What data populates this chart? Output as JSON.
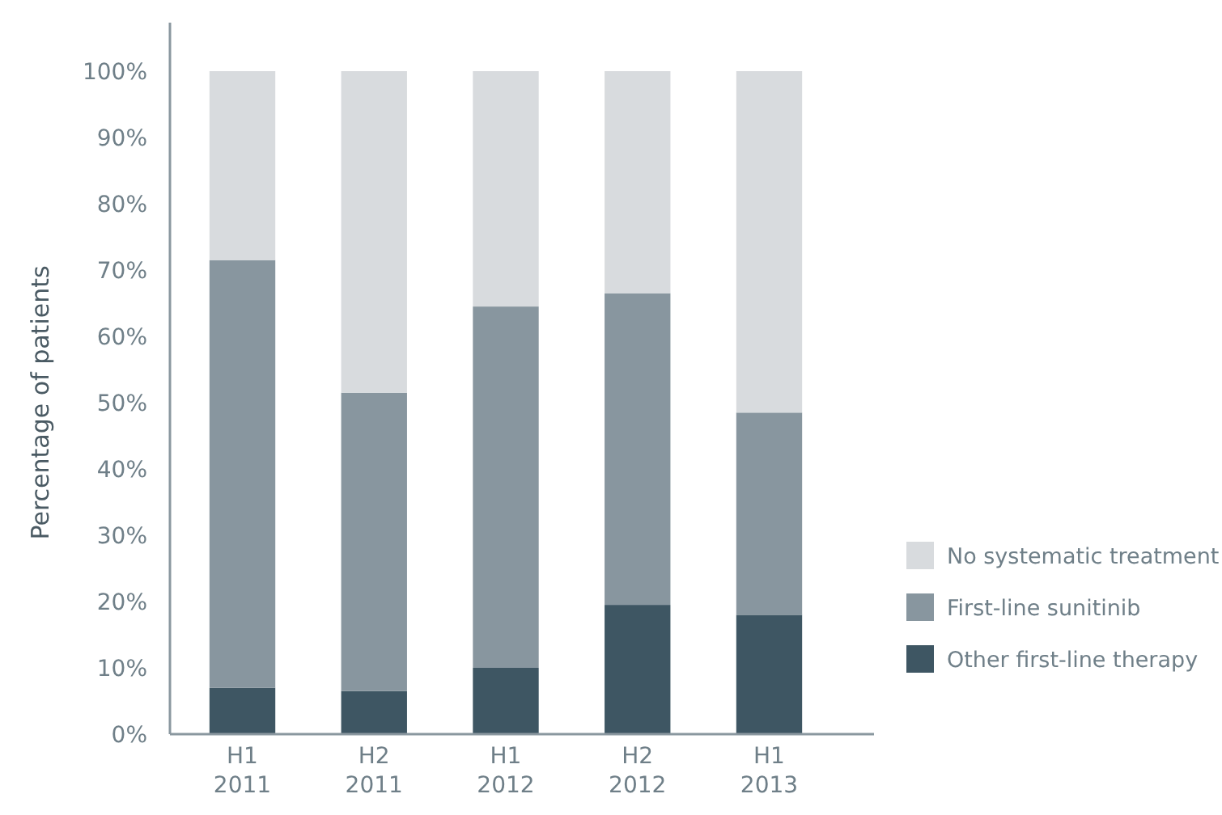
{
  "chart_data": {
    "type": "bar",
    "stacked": true,
    "ylabel": "Percentage of patients",
    "categories": [
      "H1\n2011",
      "H2\n2011",
      "H1\n2012",
      "H2\n2012",
      "H1\n2013"
    ],
    "series": [
      {
        "name": "Other first-line therapy",
        "color": "#3e5663",
        "values": [
          7,
          6.5,
          10,
          19.5,
          18
        ]
      },
      {
        "name": "First-line sunitinib",
        "color": "#88969f",
        "values": [
          64.5,
          45,
          54.5,
          47,
          30.5
        ]
      },
      {
        "name": "No systematic treatment",
        "color": "#d8dbde",
        "values": [
          28.5,
          48.5,
          35.5,
          33.5,
          51.5
        ]
      }
    ],
    "ylim": [
      0,
      100
    ],
    "yticks": [
      {
        "value": 0,
        "label": "0%"
      },
      {
        "value": 10,
        "label": "10%"
      },
      {
        "value": 20,
        "label": "20%"
      },
      {
        "value": 30,
        "label": "30%"
      },
      {
        "value": 40,
        "label": "40%"
      },
      {
        "value": 50,
        "label": "50%"
      },
      {
        "value": 60,
        "label": "60%"
      },
      {
        "value": 70,
        "label": "70%"
      },
      {
        "value": 80,
        "label": "80%"
      },
      {
        "value": 90,
        "label": "90%"
      },
      {
        "value": 100,
        "label": "100%"
      }
    ],
    "grid": false,
    "legend": "bottom right"
  }
}
